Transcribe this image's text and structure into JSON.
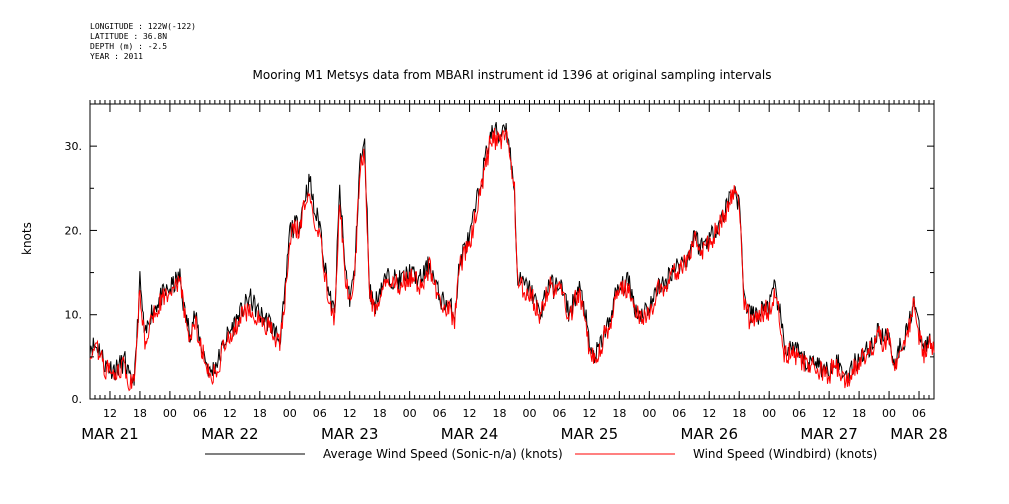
{
  "header": {
    "longitude": "LONGITUDE : 122W(-122)",
    "latitude": "LATITUDE : 36.8N",
    "depth": "DEPTH (m) : -2.5",
    "year": "YEAR : 2011"
  },
  "chart_data": {
    "type": "line",
    "title": "Mooring M1 Metsys data from MBARI instrument id 1396 at original sampling intervals",
    "ylabel": "knots",
    "xlabel": "",
    "ylim": [
      0,
      35
    ],
    "yticks": [
      0,
      10,
      20,
      30
    ],
    "ytick_labels": [
      "0.",
      "10.",
      "20.",
      "30."
    ],
    "x_unit": "hours since MAR 21 00:00",
    "xlim": [
      8,
      177
    ],
    "hour_ticks": [
      {
        "x": 12,
        "label": "12"
      },
      {
        "x": 18,
        "label": "18"
      },
      {
        "x": 24,
        "label": "00"
      },
      {
        "x": 30,
        "label": "06"
      },
      {
        "x": 36,
        "label": "12"
      },
      {
        "x": 42,
        "label": "18"
      },
      {
        "x": 48,
        "label": "00"
      },
      {
        "x": 54,
        "label": "06"
      },
      {
        "x": 60,
        "label": "12"
      },
      {
        "x": 66,
        "label": "18"
      },
      {
        "x": 72,
        "label": "00"
      },
      {
        "x": 78,
        "label": "06"
      },
      {
        "x": 84,
        "label": "12"
      },
      {
        "x": 90,
        "label": "18"
      },
      {
        "x": 96,
        "label": "00"
      },
      {
        "x": 102,
        "label": "06"
      },
      {
        "x": 108,
        "label": "12"
      },
      {
        "x": 114,
        "label": "18"
      },
      {
        "x": 120,
        "label": "00"
      },
      {
        "x": 126,
        "label": "06"
      },
      {
        "x": 132,
        "label": "12"
      },
      {
        "x": 138,
        "label": "18"
      },
      {
        "x": 144,
        "label": "00"
      },
      {
        "x": 150,
        "label": "06"
      },
      {
        "x": 156,
        "label": "12"
      },
      {
        "x": 162,
        "label": "18"
      },
      {
        "x": 168,
        "label": "00"
      },
      {
        "x": 174,
        "label": "06"
      }
    ],
    "day_labels": [
      {
        "x": 12,
        "label": "MAR 21"
      },
      {
        "x": 36,
        "label": "MAR 22"
      },
      {
        "x": 60,
        "label": "MAR 23"
      },
      {
        "x": 84,
        "label": "MAR 24"
      },
      {
        "x": 108,
        "label": "MAR 25"
      },
      {
        "x": 132,
        "label": "MAR 26"
      },
      {
        "x": 156,
        "label": "MAR 27"
      },
      {
        "x": 174,
        "label": "MAR 28"
      }
    ],
    "series": [
      {
        "name": "Average Wind Speed (Sonic-n/a) (knots)",
        "color": "#000000",
        "points": [
          [
            8,
            6.5
          ],
          [
            10,
            6
          ],
          [
            11,
            4
          ],
          [
            13,
            3.5
          ],
          [
            15,
            4.5
          ],
          [
            16,
            2
          ],
          [
            17,
            3
          ],
          [
            18,
            14
          ],
          [
            19,
            7
          ],
          [
            20,
            10
          ],
          [
            22,
            12
          ],
          [
            24,
            13
          ],
          [
            26,
            14.5
          ],
          [
            27,
            10
          ],
          [
            28,
            8
          ],
          [
            29,
            10
          ],
          [
            30,
            7
          ],
          [
            31,
            5
          ],
          [
            32,
            3
          ],
          [
            34,
            5
          ],
          [
            35,
            7
          ],
          [
            36,
            8
          ],
          [
            38,
            10
          ],
          [
            40,
            12
          ],
          [
            42,
            10
          ],
          [
            44,
            9
          ],
          [
            46,
            7
          ],
          [
            47,
            12
          ],
          [
            48,
            20
          ],
          [
            50,
            21
          ],
          [
            51,
            24
          ],
          [
            52,
            26
          ],
          [
            53,
            22
          ],
          [
            54,
            21
          ],
          [
            55,
            16
          ],
          [
            56,
            12
          ],
          [
            57,
            10
          ],
          [
            58,
            25
          ],
          [
            59,
            16
          ],
          [
            60,
            12
          ],
          [
            61,
            15
          ],
          [
            62,
            28
          ],
          [
            63,
            30
          ],
          [
            64,
            13
          ],
          [
            65,
            11
          ],
          [
            66,
            13
          ],
          [
            67,
            14
          ],
          [
            68,
            14.5
          ],
          [
            70,
            14
          ],
          [
            72,
            15
          ],
          [
            74,
            14
          ],
          [
            76,
            16
          ],
          [
            77,
            14
          ],
          [
            78,
            12
          ],
          [
            80,
            11
          ],
          [
            81,
            10
          ],
          [
            82,
            16
          ],
          [
            83,
            18
          ],
          [
            84,
            19
          ],
          [
            86,
            25
          ],
          [
            87,
            28
          ],
          [
            88,
            31
          ],
          [
            89,
            32
          ],
          [
            90,
            31
          ],
          [
            91,
            33
          ],
          [
            92,
            30
          ],
          [
            92.5,
            27
          ],
          [
            93,
            25
          ],
          [
            93.5,
            15
          ],
          [
            94,
            14
          ],
          [
            96,
            13
          ],
          [
            97,
            12
          ],
          [
            98,
            10
          ],
          [
            99,
            12
          ],
          [
            100,
            14
          ],
          [
            101,
            13
          ],
          [
            102,
            14
          ],
          [
            103,
            12
          ],
          [
            104,
            10
          ],
          [
            105,
            12
          ],
          [
            106,
            13
          ],
          [
            107,
            11
          ],
          [
            108,
            6
          ],
          [
            109,
            5
          ],
          [
            110,
            6
          ],
          [
            111,
            8
          ],
          [
            112,
            9
          ],
          [
            113,
            12
          ],
          [
            114,
            13
          ],
          [
            116,
            14
          ],
          [
            117,
            11
          ],
          [
            118,
            10
          ],
          [
            120,
            11
          ],
          [
            121,
            12
          ],
          [
            122,
            14
          ],
          [
            123,
            13
          ],
          [
            124,
            15
          ],
          [
            126,
            16
          ],
          [
            128,
            17
          ],
          [
            129,
            20
          ],
          [
            130,
            18
          ],
          [
            132,
            19
          ],
          [
            134,
            21
          ],
          [
            135,
            22
          ],
          [
            136,
            24
          ],
          [
            137,
            25
          ],
          [
            138,
            23
          ],
          [
            138.5,
            18
          ],
          [
            139,
            12
          ],
          [
            140,
            10
          ],
          [
            142,
            10
          ],
          [
            143,
            11
          ],
          [
            144,
            11
          ],
          [
            145,
            13
          ],
          [
            146,
            11
          ],
          [
            147,
            6
          ],
          [
            149,
            6
          ],
          [
            150,
            5
          ],
          [
            152,
            4
          ],
          [
            153,
            5
          ],
          [
            154,
            4
          ],
          [
            156,
            3
          ],
          [
            157,
            5
          ],
          [
            158,
            4
          ],
          [
            159,
            3
          ],
          [
            160,
            3
          ],
          [
            162,
            5
          ],
          [
            164,
            6
          ],
          [
            165,
            7
          ],
          [
            166,
            8
          ],
          [
            167,
            7
          ],
          [
            168,
            8
          ],
          [
            169,
            4
          ],
          [
            170,
            6
          ],
          [
            171,
            7
          ],
          [
            172,
            9
          ],
          [
            173,
            12
          ],
          [
            174,
            8
          ],
          [
            175,
            6
          ],
          [
            176,
            7
          ],
          [
            177,
            6
          ]
        ]
      },
      {
        "name": "Wind Speed (Windbird) (knots)",
        "color": "#ff0000",
        "points": [
          [
            8,
            6
          ],
          [
            10,
            5.5
          ],
          [
            11,
            3.5
          ],
          [
            13,
            3
          ],
          [
            15,
            4
          ],
          [
            16,
            1.5
          ],
          [
            17,
            2.5
          ],
          [
            18,
            13
          ],
          [
            19,
            6.5
          ],
          [
            20,
            9.5
          ],
          [
            22,
            11.5
          ],
          [
            24,
            12.5
          ],
          [
            26,
            14
          ],
          [
            27,
            9.5
          ],
          [
            28,
            7.5
          ],
          [
            29,
            9.5
          ],
          [
            30,
            6.5
          ],
          [
            31,
            4.5
          ],
          [
            32,
            2.5
          ],
          [
            34,
            4.5
          ],
          [
            35,
            6.5
          ],
          [
            36,
            7.5
          ],
          [
            38,
            9.5
          ],
          [
            40,
            11
          ],
          [
            42,
            9.5
          ],
          [
            44,
            8.5
          ],
          [
            46,
            6.5
          ],
          [
            47,
            11.5
          ],
          [
            48,
            19.5
          ],
          [
            50,
            20.5
          ],
          [
            51,
            23
          ],
          [
            52,
            25
          ],
          [
            53,
            21
          ],
          [
            54,
            20
          ],
          [
            55,
            15
          ],
          [
            56,
            11
          ],
          [
            57,
            9.5
          ],
          [
            58,
            24
          ],
          [
            59,
            15
          ],
          [
            60,
            11.5
          ],
          [
            61,
            14.5
          ],
          [
            62,
            27
          ],
          [
            63,
            29
          ],
          [
            64,
            12.5
          ],
          [
            65,
            10.5
          ],
          [
            66,
            12.5
          ],
          [
            67,
            13.5
          ],
          [
            68,
            14
          ],
          [
            70,
            13.5
          ],
          [
            72,
            14.5
          ],
          [
            74,
            13.5
          ],
          [
            76,
            15.5
          ],
          [
            77,
            13.5
          ],
          [
            78,
            11.5
          ],
          [
            80,
            10.5
          ],
          [
            81,
            9.5
          ],
          [
            82,
            15.5
          ],
          [
            83,
            17.5
          ],
          [
            84,
            18.5
          ],
          [
            86,
            24
          ],
          [
            87,
            27
          ],
          [
            88,
            30
          ],
          [
            89,
            31
          ],
          [
            90,
            30
          ],
          [
            91,
            32
          ],
          [
            92,
            29
          ],
          [
            92.5,
            26
          ],
          [
            93,
            24.5
          ],
          [
            93.5,
            14.5
          ],
          [
            94,
            13.5
          ],
          [
            96,
            12.5
          ],
          [
            97,
            11.5
          ],
          [
            98,
            9.5
          ],
          [
            99,
            11.5
          ],
          [
            100,
            13.5
          ],
          [
            101,
            12.5
          ],
          [
            102,
            13.5
          ],
          [
            103,
            11.5
          ],
          [
            104,
            9.5
          ],
          [
            105,
            11.5
          ],
          [
            106,
            12.5
          ],
          [
            107,
            10.5
          ],
          [
            108,
            5.5
          ],
          [
            109,
            4.5
          ],
          [
            110,
            5.5
          ],
          [
            111,
            7.5
          ],
          [
            112,
            8.5
          ],
          [
            113,
            11.5
          ],
          [
            114,
            12.5
          ],
          [
            116,
            13.5
          ],
          [
            117,
            10.5
          ],
          [
            118,
            9.5
          ],
          [
            120,
            10.5
          ],
          [
            121,
            11.5
          ],
          [
            122,
            13.5
          ],
          [
            123,
            12.5
          ],
          [
            124,
            14.5
          ],
          [
            126,
            15.5
          ],
          [
            128,
            16.5
          ],
          [
            129,
            19.5
          ],
          [
            130,
            17.5
          ],
          [
            132,
            18.5
          ],
          [
            134,
            20.5
          ],
          [
            135,
            21.5
          ],
          [
            136,
            23.5
          ],
          [
            137,
            24.5
          ],
          [
            138,
            22.5
          ],
          [
            138.5,
            17.5
          ],
          [
            139,
            11.5
          ],
          [
            140,
            9.5
          ],
          [
            142,
            9.5
          ],
          [
            143,
            10.5
          ],
          [
            144,
            10.5
          ],
          [
            145,
            12.5
          ],
          [
            146,
            10.5
          ],
          [
            147,
            5.5
          ],
          [
            149,
            5.5
          ],
          [
            150,
            4.5
          ],
          [
            152,
            3.5
          ],
          [
            153,
            4.5
          ],
          [
            154,
            3.5
          ],
          [
            156,
            2.5
          ],
          [
            157,
            4.5
          ],
          [
            158,
            3.5
          ],
          [
            159,
            2.5
          ],
          [
            160,
            2.5
          ],
          [
            162,
            4.5
          ],
          [
            164,
            5.5
          ],
          [
            165,
            6.5
          ],
          [
            166,
            7.5
          ],
          [
            167,
            6.5
          ],
          [
            168,
            7.5
          ],
          [
            169,
            3.5
          ],
          [
            170,
            5.5
          ],
          [
            171,
            6.5
          ],
          [
            172,
            8.5
          ],
          [
            173,
            11.5
          ],
          [
            174,
            7.5
          ],
          [
            175,
            5.5
          ],
          [
            176,
            6.5
          ],
          [
            177,
            5.5
          ]
        ]
      }
    ],
    "legend_position": "bottom"
  }
}
